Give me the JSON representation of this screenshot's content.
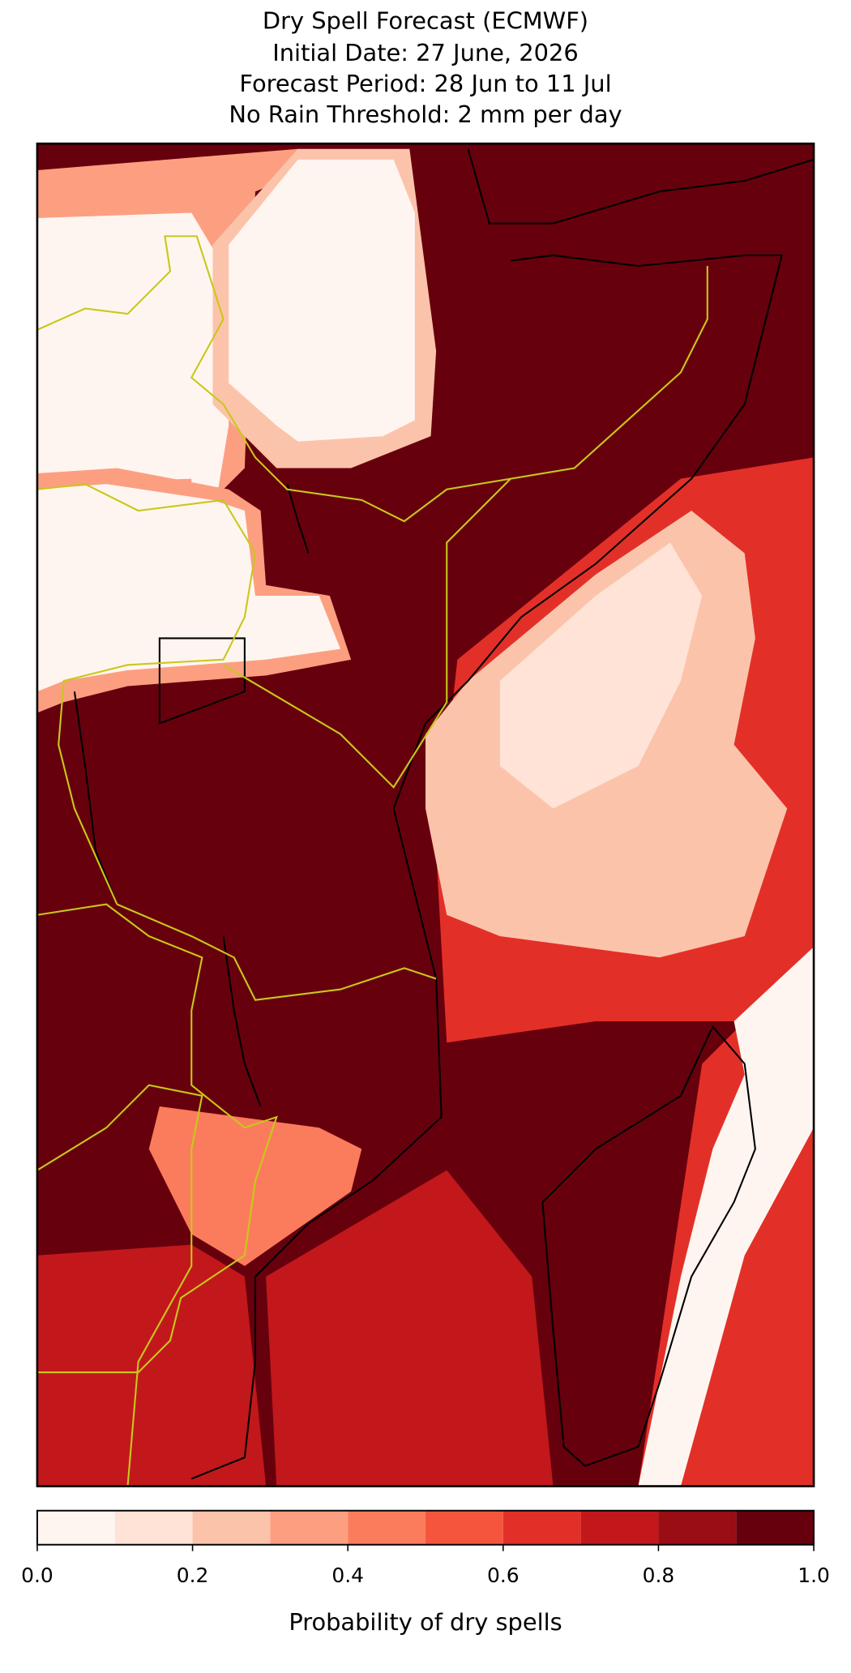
{
  "chart_data": {
    "type": "map",
    "title": "Dry Spell Forecast (ECMWF)",
    "subtitle": [
      "Initial Date: 27 June, 2026",
      "Forecast Period: 28 Jun to 11 Jul",
      "No Rain Threshold: 2 mm per day"
    ],
    "colorbar": {
      "label": "Probability of dry spells",
      "lim": [
        0,
        1
      ],
      "boundaries": [
        0,
        0.1,
        0.2,
        0.3,
        0.4,
        0.5,
        0.6,
        0.7,
        0.8,
        0.9,
        1
      ],
      "colors": [
        "#fff5f0",
        "#fee3d6",
        "#fcc3ab",
        "#fc9f81",
        "#fb7c5c",
        "#f5553d",
        "#e23028",
        "#c2181b",
        "#9b0d14",
        "#67000d"
      ],
      "ticks": [
        {
          "value": 0,
          "label": "0.0"
        },
        0.2,
        0.4,
        0.6,
        0.8,
        {
          "value": 1,
          "label": "1.0"
        }
      ]
    }
  }
}
